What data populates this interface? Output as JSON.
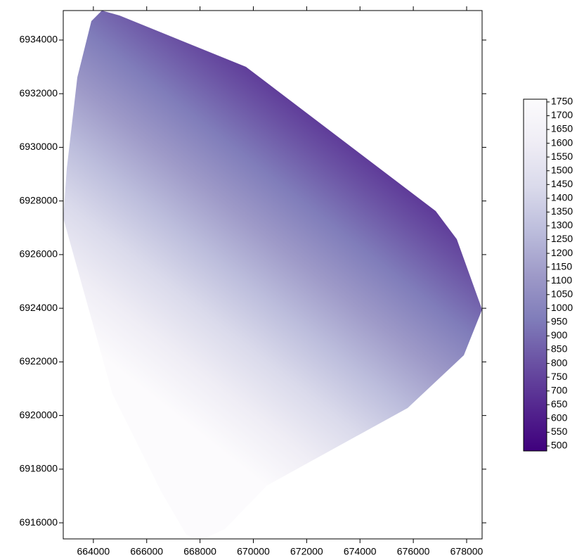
{
  "chart_data": {
    "type": "raster",
    "xlim": [
      662870,
      678580
    ],
    "xticks": [
      664000,
      666000,
      668000,
      670000,
      672000,
      674000,
      676000,
      678000
    ],
    "ylim": [
      6915400,
      6935100
    ],
    "yticks": [
      6916000,
      6918000,
      6920000,
      6922000,
      6924000,
      6926000,
      6928000,
      6930000,
      6932000,
      6934000
    ],
    "colorbar": {
      "lim": [
        482,
        1760
      ],
      "ticks": [
        500,
        550,
        600,
        650,
        700,
        750,
        800,
        850,
        900,
        950,
        1000,
        1050,
        1100,
        1150,
        1200,
        1250,
        1300,
        1350,
        1400,
        1450,
        1500,
        1550,
        1600,
        1650,
        1700,
        1750
      ]
    },
    "colors": [
      "#3f007d",
      "#54278f",
      "#6a51a3",
      "#807dba",
      "#9e9ac8",
      "#bcbddc",
      "#dadaeb",
      "#efedf5",
      "#fcfbfd"
    ]
  }
}
